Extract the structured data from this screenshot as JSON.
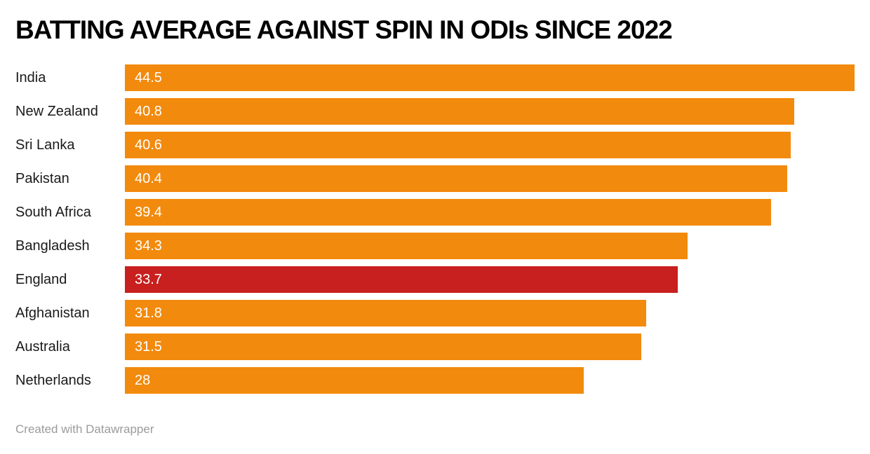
{
  "title": "BATTING AVERAGE AGAINST SPIN IN ODIs SINCE 2022",
  "footer": "Created with Datawrapper",
  "colors": {
    "bar": "#F28A0D",
    "highlight_bar": "#C8201E",
    "title_text": "#000000",
    "category_label_text": "#1a1a1a",
    "value_label_text": "#ffffff",
    "footer_text": "#9b9b9b",
    "background": "#ffffff"
  },
  "chart_data": {
    "type": "bar",
    "orientation": "horizontal",
    "title": "BATTING AVERAGE AGAINST SPIN IN ODIs SINCE 2022",
    "categories": [
      "India",
      "New Zealand",
      "Sri Lanka",
      "Pakistan",
      "South Africa",
      "Bangladesh",
      "England",
      "Afghanistan",
      "Australia",
      "Netherlands"
    ],
    "values": [
      44.5,
      40.8,
      40.6,
      40.4,
      39.4,
      34.3,
      33.7,
      31.8,
      31.5,
      28
    ],
    "value_labels": [
      "44.5",
      "40.8",
      "40.6",
      "40.4",
      "39.4",
      "34.3",
      "33.7",
      "31.8",
      "31.5",
      "28"
    ],
    "highlighted_category": "England",
    "xlabel": "",
    "ylabel": "",
    "xlim": [
      0,
      44.5
    ],
    "grid": false,
    "legend": false,
    "value_label_position": "inside-start",
    "annotations": [
      "Created with Datawrapper"
    ]
  }
}
